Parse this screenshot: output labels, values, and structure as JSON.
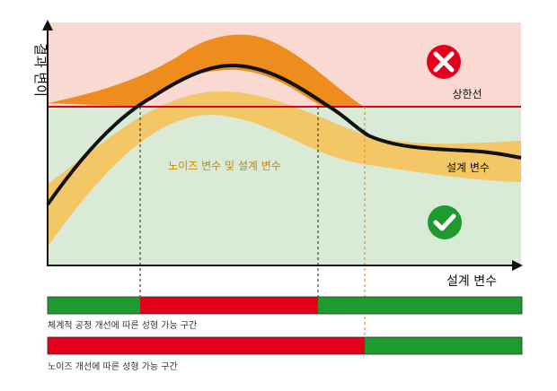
{
  "axes": {
    "y_label": "결과 변이",
    "x_label": "설계 변수"
  },
  "labels": {
    "upper_limit": "상한선",
    "noise_and_design": "노이즈 변수 및 설계 변수",
    "design_var": "설계 변수"
  },
  "icons": {
    "fail": "x-circle-icon",
    "pass": "check-circle-icon"
  },
  "bars": [
    {
      "caption": "체계적 공정 개선에 따른 성형 가능 구간",
      "segments": [
        {
          "status": "ok",
          "color": "#1e9a2e"
        },
        {
          "status": "ng",
          "color": "#e3001b"
        },
        {
          "status": "ok",
          "color": "#1e9a2e"
        }
      ]
    },
    {
      "caption": "노이즈 개선에 따른 성형 가능 구간",
      "segments": [
        {
          "status": "ng",
          "color": "#e3001b"
        },
        {
          "status": "ok",
          "color": "#1e9a2e"
        }
      ]
    }
  ],
  "colors": {
    "fail_zone": "#f9d9d2",
    "pass_zone": "#d9ead7",
    "noise_band": "#ee8c1e",
    "design_band": "#f3c765",
    "limit_line": "#e3001b",
    "curve": "#111111",
    "ok": "#1e9a2e",
    "ng": "#e3001b"
  }
}
